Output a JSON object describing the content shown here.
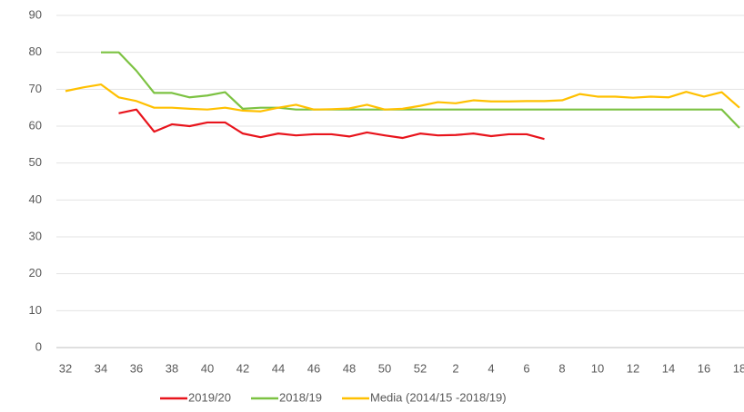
{
  "chart_data": {
    "type": "line",
    "categories": [
      32,
      null,
      34,
      null,
      36,
      null,
      38,
      null,
      40,
      null,
      42,
      null,
      44,
      null,
      46,
      null,
      48,
      null,
      50,
      null,
      52,
      null,
      2,
      null,
      4,
      null,
      6,
      null,
      8,
      null,
      10,
      null,
      12,
      null,
      14,
      null,
      16,
      null,
      18
    ],
    "series": [
      {
        "name": "2019/20",
        "color": "#e8141c",
        "values": [
          null,
          null,
          null,
          63.5,
          64.5,
          58.5,
          60.5,
          60,
          61,
          61,
          58,
          57,
          58,
          57.5,
          57.8,
          57.8,
          57.2,
          58.3,
          57.5,
          56.8,
          58,
          57.5,
          57.6,
          58,
          57.3,
          57.8,
          57.8,
          56.5,
          null,
          null,
          null,
          null,
          null,
          null,
          null,
          null,
          null,
          null,
          null
        ]
      },
      {
        "name": "2018/19",
        "color": "#7cc242",
        "values": [
          null,
          null,
          80,
          80,
          75,
          69,
          69,
          67.8,
          68.3,
          69.2,
          64.7,
          65,
          65,
          64.5,
          64.5,
          64.5,
          64.5,
          64.5,
          64.5,
          64.5,
          64.5,
          64.5,
          64.5,
          64.5,
          64.5,
          64.5,
          64.5,
          64.5,
          64.5,
          64.5,
          64.5,
          64.5,
          64.5,
          64.5,
          64.5,
          64.5,
          64.5,
          64.5,
          59.5
        ]
      },
      {
        "name": "Media (2014/15 -2018/19)",
        "color": "#ffc000",
        "values": [
          69.5,
          70.5,
          71.3,
          67.8,
          66.8,
          65,
          65,
          64.7,
          64.5,
          65,
          64.2,
          64,
          65,
          65.8,
          64.5,
          64.6,
          64.8,
          65.8,
          64.5,
          64.7,
          65.5,
          66.5,
          66.2,
          67,
          66.7,
          66.7,
          66.8,
          66.8,
          67,
          68.7,
          68,
          68,
          67.7,
          68,
          67.8,
          69.3,
          68,
          69.2,
          65
        ]
      }
    ],
    "ylim": [
      0,
      90
    ],
    "yticks": [
      0,
      10,
      20,
      30,
      40,
      50,
      60,
      70,
      80,
      90
    ],
    "grid": true,
    "legend": "bottom"
  }
}
